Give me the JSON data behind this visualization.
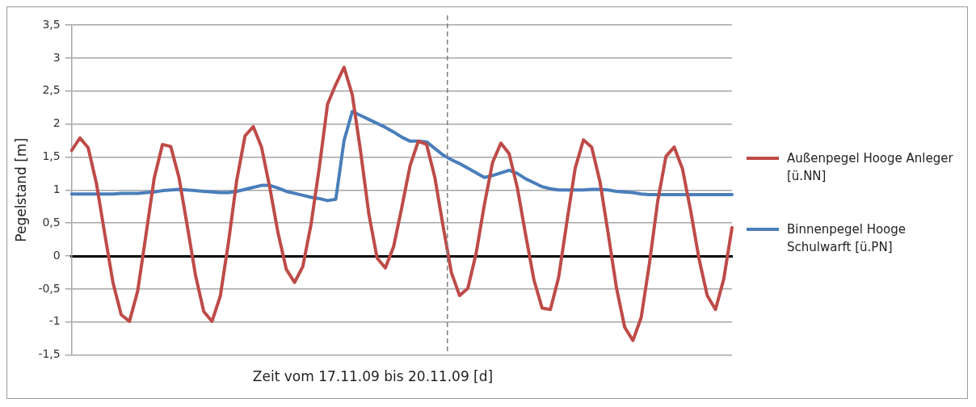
{
  "chart_data": {
    "type": "line",
    "xlabel": "Zeit vom 17.11.09 bis 20.11.09 [d]",
    "ylabel": "Pegelstand [m]",
    "categories": [
      null,
      null,
      null,
      null,
      null,
      null,
      null,
      null,
      null,
      null,
      null,
      null,
      null,
      null,
      null,
      null,
      null,
      null,
      null,
      null,
      null,
      null,
      null,
      null,
      null,
      null,
      null,
      null,
      null,
      null,
      null,
      null,
      null,
      null,
      null,
      null,
      null,
      null,
      null,
      null,
      null,
      null,
      null,
      null,
      null,
      null,
      null,
      null,
      null,
      null,
      null,
      null,
      null,
      null,
      null,
      null,
      null,
      null,
      null,
      null,
      null,
      null,
      null,
      null,
      null,
      null,
      null,
      null,
      null,
      null,
      null,
      null,
      null,
      null,
      null,
      null,
      null,
      null,
      null,
      null,
      null
    ],
    "ylim": [
      -1.5,
      3.5
    ],
    "yticks": [
      {
        "value": -1.5,
        "label": "-1,5"
      },
      -1,
      {
        "value": -0.5,
        "label": "-0,5"
      },
      0,
      {
        "value": 0.5,
        "label": "0,5"
      },
      1,
      {
        "value": 1.5,
        "label": "1,5"
      },
      2,
      {
        "value": 2.5,
        "label": "2,5"
      },
      3,
      {
        "value": 3.5,
        "label": "3,5"
      }
    ],
    "grid": "y",
    "legend": "right",
    "marker": "none",
    "line_style": "solid",
    "series": [
      {
        "name": "Außenpegel Hooge Anleger [ü.NN]",
        "color": "#be4b48",
        "values": [
          1.6,
          1.79,
          1.64,
          1.1,
          0.34,
          -0.4,
          -0.89,
          -0.99,
          -0.53,
          0.32,
          1.18,
          1.69,
          1.66,
          1.19,
          0.46,
          -0.29,
          -0.84,
          -0.99,
          -0.61,
          0.21,
          1.15,
          1.82,
          1.96,
          1.65,
          1.04,
          0.35,
          -0.2,
          -0.4,
          -0.16,
          0.48,
          1.34,
          2.3,
          2.6,
          2.86,
          2.44,
          1.59,
          0.64,
          -0.03,
          -0.18,
          0.14,
          0.74,
          1.37,
          1.74,
          1.69,
          1.19,
          0.45,
          -0.25,
          -0.6,
          -0.49,
          0.04,
          0.78,
          1.42,
          1.71,
          1.55,
          1.03,
          0.32,
          -0.36,
          -0.79,
          -0.81,
          -0.32,
          0.52,
          1.33,
          1.76,
          1.65,
          1.13,
          0.34,
          -0.48,
          -1.08,
          -1.28,
          -0.93,
          -0.11,
          0.83,
          1.51,
          1.65,
          1.32,
          0.68,
          -0.04,
          -0.6,
          -0.81,
          -0.35,
          0.43
        ]
      },
      {
        "name": "Binnenpegel Hooge Schulwarft [ü.PN]",
        "color": "#4a7ebb",
        "values": [
          0.94,
          0.94,
          0.94,
          0.94,
          0.94,
          0.94,
          0.95,
          0.95,
          0.95,
          0.96,
          0.97,
          0.99,
          1.0,
          1.01,
          1.0,
          0.99,
          0.98,
          0.97,
          0.96,
          0.96,
          0.98,
          1.01,
          1.04,
          1.07,
          1.07,
          1.03,
          0.98,
          0.95,
          0.92,
          0.89,
          0.87,
          0.84,
          0.86,
          1.75,
          2.19,
          2.13,
          2.07,
          2.01,
          1.95,
          1.88,
          1.8,
          1.74,
          1.74,
          1.73,
          1.63,
          1.53,
          1.46,
          1.4,
          1.33,
          1.26,
          1.19,
          1.22,
          1.26,
          1.3,
          1.25,
          1.17,
          1.11,
          1.05,
          1.02,
          1.0,
          1.0,
          1.0,
          1.0,
          1.01,
          1.01,
          1.0,
          0.98,
          0.97,
          0.96,
          0.94,
          0.93,
          0.93,
          0.93,
          0.93,
          0.93,
          0.93,
          0.93,
          0.93,
          0.93,
          0.93,
          0.93
        ]
      }
    ]
  }
}
